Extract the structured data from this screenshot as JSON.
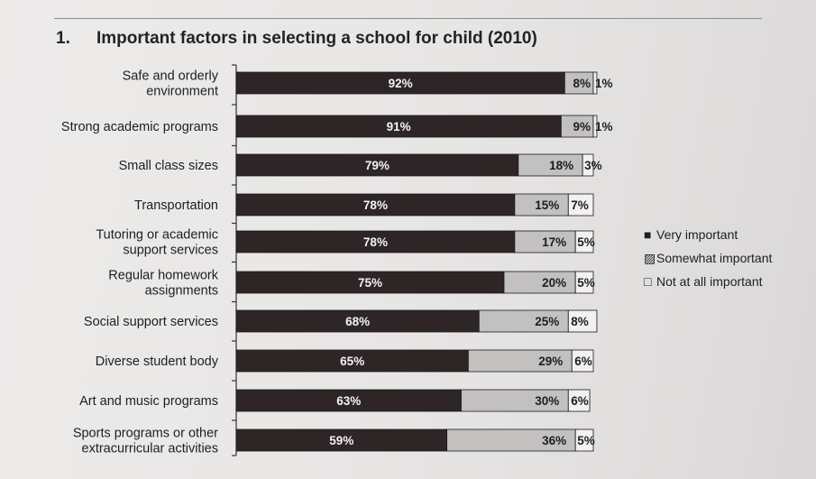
{
  "chart_data": {
    "type": "bar",
    "stacked": true,
    "orientation": "horizontal",
    "number": "1.",
    "title": "Important factors in selecting a school for child (2010)",
    "categories": [
      "Safe and orderly\nenvironment",
      "Strong academic programs",
      "Small class sizes",
      "Transportation",
      "Tutoring or academic\nsupport services",
      "Regular homework\nassignments",
      "Social support services",
      "Diverse student body",
      "Art and music programs",
      "Sports programs or other\nextracurricular activities"
    ],
    "series": [
      {
        "name": "Very important",
        "color": "#2e2527",
        "values": [
          92,
          91,
          79,
          78,
          78,
          75,
          68,
          65,
          63,
          59
        ]
      },
      {
        "name": "Somewhat important",
        "color": "#c3c0c0",
        "values": [
          8,
          9,
          18,
          15,
          17,
          20,
          25,
          29,
          30,
          36
        ]
      },
      {
        "name": "Not at all important",
        "color": "#f3f1f0",
        "values": [
          1,
          1,
          3,
          7,
          5,
          5,
          8,
          6,
          6,
          5
        ]
      }
    ],
    "data_label_suffix": "%",
    "xlim": [
      0,
      100
    ],
    "legend_position": "right",
    "legend_markers": [
      "■",
      "▨",
      "□"
    ]
  }
}
